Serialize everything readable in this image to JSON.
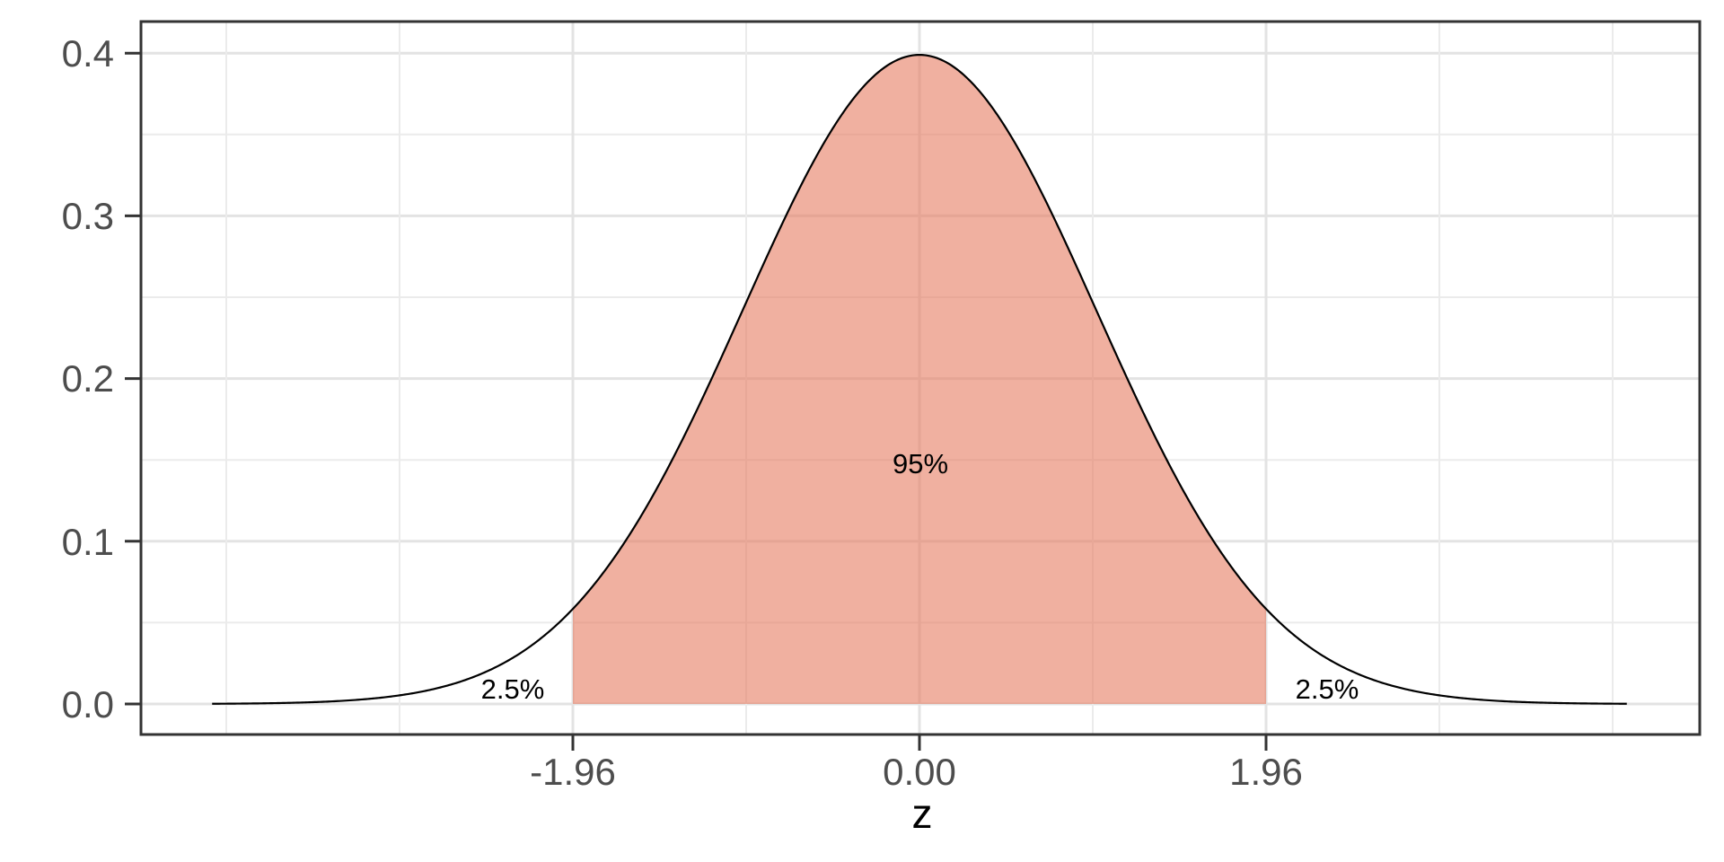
{
  "figure": {
    "background": "#FFFFFF"
  },
  "chart_data": {
    "type": "area",
    "title": "",
    "description": "Standard normal density curve with the central 95% region shaded between z = -1.96 and z = 1.96, and 2.5% in each tail",
    "curve": {
      "distribution": "normal",
      "mean": 0,
      "sd": 1,
      "x_min": -4,
      "x_max": 4,
      "peak_density": 0.3989,
      "color": "#000000"
    },
    "shaded_region": {
      "from": -1.96,
      "to": 1.96,
      "label": "95%",
      "label_x": 0,
      "label_y": 0.148,
      "fill": "#E67B61",
      "fill_opacity": 0.6
    },
    "tail_labels": [
      {
        "label": "2.5%",
        "x": -2.3,
        "y": 0.01
      },
      {
        "label": "2.5%",
        "x": 2.3,
        "y": 0.01
      }
    ],
    "x_axis": {
      "title": "z",
      "ticks": [
        -1.96,
        0,
        1.96
      ],
      "tick_labels": [
        "-1.96",
        "0.00",
        "1.96"
      ],
      "range": [
        -4.4,
        4.4
      ],
      "minor_gridlines": [
        -3.92,
        -2.94,
        -0.98,
        0.98,
        2.94,
        3.92
      ]
    },
    "y_axis": {
      "title": "",
      "ticks": [
        0,
        0.1,
        0.2,
        0.3,
        0.4
      ],
      "tick_labels": [
        "0.0",
        "0.1",
        "0.2",
        "0.3",
        "0.4"
      ],
      "range": [
        -0.02,
        0.419
      ],
      "minor_gridlines": [
        0.05,
        0.15,
        0.25,
        0.35
      ]
    },
    "grid": {
      "on": true,
      "major_color": "#E3E3E3",
      "minor_color": "#EBEBEB",
      "panel_background": "#FFFFFF"
    },
    "panel_border_color": "#333333",
    "tick_mark_color": "#333333",
    "tick_label_color": "#4D4D4D",
    "annotation_color": "#000000",
    "legend": {
      "position": "none"
    }
  }
}
